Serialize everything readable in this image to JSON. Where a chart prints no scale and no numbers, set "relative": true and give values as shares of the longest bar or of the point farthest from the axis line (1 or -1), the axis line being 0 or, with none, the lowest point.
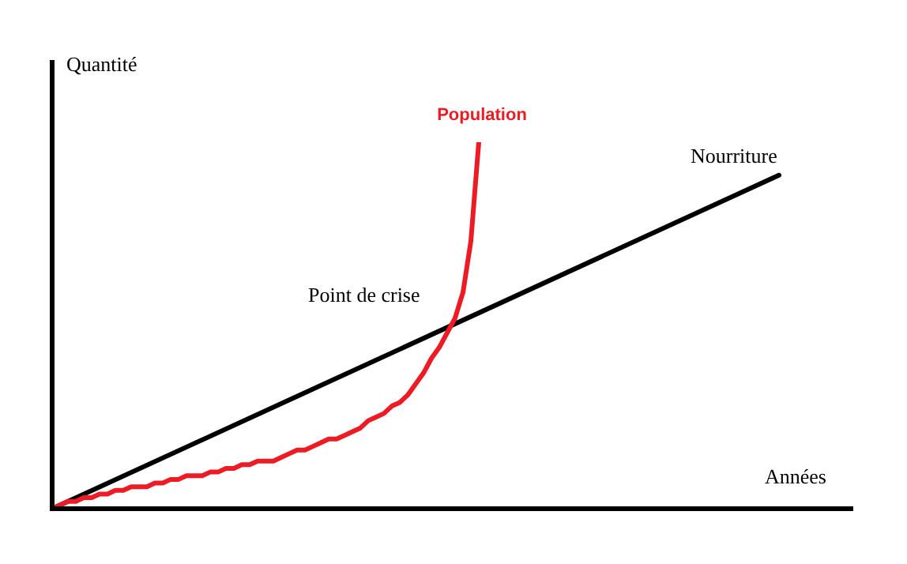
{
  "chart_data": {
    "type": "line",
    "relative": true,
    "xlabel": "Années",
    "ylabel": "Quantité",
    "annotations": [
      "Point de crise"
    ],
    "categories": [
      null,
      null,
      null,
      null,
      null,
      null,
      null,
      null,
      null,
      null,
      null,
      null,
      null,
      null,
      null,
      null,
      null,
      null,
      null,
      null,
      null,
      null,
      null,
      null,
      null,
      null,
      null,
      null,
      null,
      null,
      null,
      null,
      null,
      null,
      null,
      null,
      null,
      null,
      null,
      null,
      null,
      null,
      null,
      null,
      null,
      null,
      null,
      null,
      null,
      null,
      null,
      null,
      null,
      null,
      null,
      null,
      null,
      null,
      null,
      null,
      null,
      null,
      null,
      null,
      null,
      null,
      null,
      null,
      null,
      null,
      null,
      null,
      null,
      null,
      null,
      null,
      null,
      null,
      null,
      null,
      null,
      null,
      null,
      null,
      null,
      null,
      null,
      null,
      null,
      null,
      null,
      null,
      null
    ],
    "series": [
      {
        "name": "Population",
        "color": "#ed1c24",
        "values": [
          0,
          0.01,
          0.02,
          0.02,
          0.03,
          0.03,
          0.04,
          0.04,
          0.05,
          0.05,
          0.06,
          0.06,
          0.06,
          0.07,
          0.07,
          0.08,
          0.08,
          0.09,
          0.09,
          0.09,
          0.1,
          0.1,
          0.11,
          0.11,
          0.12,
          0.12,
          0.13,
          0.13,
          0.13,
          0.14,
          0.15,
          0.16,
          0.16,
          0.17,
          0.18,
          0.19,
          0.19,
          0.2,
          0.21,
          0.22,
          0.24,
          0.25,
          0.26,
          0.28,
          0.29,
          0.31,
          0.34,
          0.37,
          0.41,
          0.44,
          0.48,
          0.52,
          0.59,
          0.73,
          1,
          null,
          null,
          null,
          null,
          null,
          null,
          null,
          null,
          null,
          null,
          null,
          null,
          null,
          null,
          null,
          null,
          null,
          null,
          null,
          null,
          null,
          null,
          null,
          null,
          null,
          null,
          null,
          null,
          null,
          null,
          null,
          null,
          null,
          null,
          null,
          null,
          null,
          null
        ]
      },
      {
        "name": "Nourriture",
        "color": "#000000",
        "values": [
          0,
          null,
          null,
          null,
          null,
          null,
          null,
          null,
          null,
          null,
          null,
          null,
          null,
          null,
          null,
          null,
          null,
          null,
          null,
          null,
          null,
          null,
          null,
          null,
          null,
          null,
          null,
          null,
          null,
          null,
          null,
          null,
          null,
          null,
          null,
          null,
          null,
          null,
          null,
          null,
          null,
          null,
          null,
          null,
          null,
          null,
          null,
          null,
          null,
          null,
          null,
          null,
          null,
          null,
          null,
          null,
          null,
          null,
          null,
          null,
          null,
          null,
          null,
          null,
          null,
          null,
          null,
          null,
          null,
          null,
          null,
          null,
          null,
          null,
          null,
          null,
          null,
          null,
          null,
          null,
          null,
          null,
          null,
          null,
          null,
          null,
          null,
          null,
          null,
          null,
          null,
          null,
          0.91
        ]
      }
    ]
  }
}
